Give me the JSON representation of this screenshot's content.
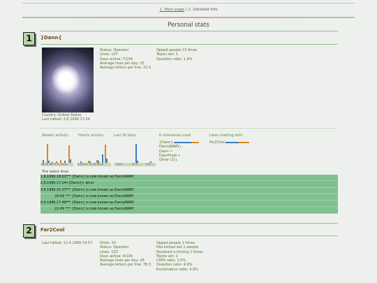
{
  "nav": {
    "main_link": "1. Main page",
    "separator": "|",
    "detail_text": "2. Detailed info"
  },
  "section_title": "Personal stats",
  "users": [
    {
      "rank": "1",
      "nick": "}Dann{",
      "country": "Country: United States",
      "last_talked": "Last talked: 2.6.1999 17:24",
      "stats_col1": [
        "Status: Operator",
        "Lines: 107",
        "Days active: 7/104",
        "Average lines per day: 15",
        "Average letters per line: 21.0"
      ],
      "stats_col2": [
        "Opped people 13 times",
        "Topics set: 1",
        "Question ratio: 1.9%"
      ],
      "weekly_activity_label": "Weekly activity",
      "hourly_activity_label": "Hourly activity",
      "last20_label": "Last 20 days",
      "weekly_days": "Mo Tu We Th Fr Sa Su",
      "hourly_ranges": "0-6  6-12 12-18 18-24",
      "last20_ticks": [
        "24.5.",
        "31.5.",
        "7.6."
      ],
      "nicknames_used_label": "6 nicknames used",
      "nicknames": [
        "}Dann{",
        "Dann|AWAY",
        "Dann-",
        "DannFlash",
        "Other (2)"
      ],
      "likes_label": "Likes chatting with:",
      "likes": [
        "Far2Cool"
      ],
      "latest_lines_label": "The latest lines",
      "latest_lines": [
        {
          "time": "1.6.1999 18:01",
          "text": "*** }Dann{ is now known as Dann|AWAY"
        },
        {
          "time": "2.6.1999 17:24",
          "text": "<}Dann{> whut"
        },
        {
          "time": "3.6.1999 15:37",
          "text": "*** }Dann{ is now known as Dann|AWAY"
        },
        {
          "time": "20:49",
          "text": "*** }Dann{ is now known as Dann|AWAY"
        },
        {
          "time": "6.6.1999 17:49",
          "text": "*** }Dann{ is now known as Dann|AWAY"
        },
        {
          "time": "22:49",
          "text": "*** }Dann{ is now known as Dann|AWAY"
        }
      ]
    },
    {
      "rank": "2",
      "nick": "Far2Cool",
      "stats_col1": [
        "Last talked: 12.4.1999 14:57",
        "Visits: 10",
        "Status: Operator",
        "Lines: 103",
        "Days active: 4/104",
        "Average lines per day: 26",
        "Average letters per line: 35.3"
      ],
      "stats_col2": [
        "Opped people 1 times",
        "Has kicked out 1 people",
        "Received a kicking 1 times",
        "Topics set: 1",
        "CAPS ratio: 1.0%",
        "Question ratio: 4.9%",
        "Exclamation ratio: 4.9%"
      ]
    }
  ],
  "colors": {
    "accent_green": "#8fbf8f",
    "bar_orange": "#d9881e",
    "bar_blue": "#3a7dbf",
    "row_green": "#80c08e"
  }
}
